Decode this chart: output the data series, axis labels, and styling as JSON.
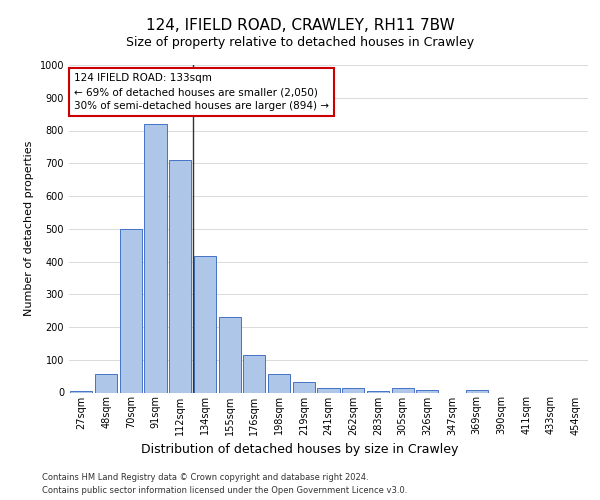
{
  "title_line1": "124, IFIELD ROAD, CRAWLEY, RH11 7BW",
  "title_line2": "Size of property relative to detached houses in Crawley",
  "xlabel": "Distribution of detached houses by size in Crawley",
  "ylabel": "Number of detached properties",
  "categories": [
    "27sqm",
    "48sqm",
    "70sqm",
    "91sqm",
    "112sqm",
    "134sqm",
    "155sqm",
    "176sqm",
    "198sqm",
    "219sqm",
    "241sqm",
    "262sqm",
    "283sqm",
    "305sqm",
    "326sqm",
    "347sqm",
    "369sqm",
    "390sqm",
    "411sqm",
    "433sqm",
    "454sqm"
  ],
  "values": [
    5,
    57,
    500,
    820,
    710,
    418,
    230,
    115,
    55,
    32,
    15,
    13,
    5,
    13,
    8,
    0,
    8,
    0,
    0,
    0,
    0
  ],
  "bar_color": "#aec6e8",
  "bar_edge_color": "#4472c4",
  "annotation_title": "124 IFIELD ROAD: 133sqm",
  "annotation_line2": "← 69% of detached houses are smaller (2,050)",
  "annotation_line3": "30% of semi-detached houses are larger (894) →",
  "annotation_box_color": "#ffffff",
  "annotation_box_edge": "#cc0000",
  "vline_color": "#333333",
  "ylim": [
    0,
    1000
  ],
  "yticks": [
    0,
    100,
    200,
    300,
    400,
    500,
    600,
    700,
    800,
    900,
    1000
  ],
  "footer_line1": "Contains HM Land Registry data © Crown copyright and database right 2024.",
  "footer_line2": "Contains public sector information licensed under the Open Government Licence v3.0.",
  "background_color": "#ffffff",
  "grid_color": "#cccccc",
  "title1_fontsize": 11,
  "title2_fontsize": 9,
  "ylabel_fontsize": 8,
  "xlabel_fontsize": 9,
  "tick_fontsize": 7,
  "footer_fontsize": 6,
  "ann_fontsize": 7.5,
  "vline_x_index": 4.5
}
